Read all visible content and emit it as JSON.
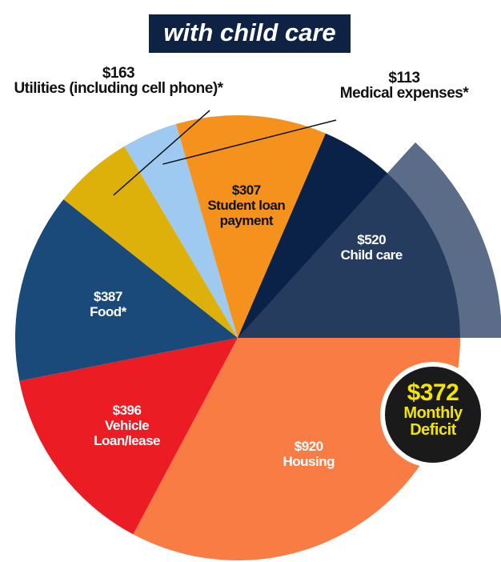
{
  "chart_data": {
    "type": "pie",
    "title": "with child care",
    "categories": [
      "Housing",
      "Vehicle Loan/lease",
      "Food*",
      "Utilities (including cell phone)*",
      "Medical expenses*",
      "Student loan payment",
      "Child care"
    ],
    "values": [
      920,
      396,
      387,
      163,
      113,
      307,
      520
    ],
    "value_labels": [
      "$920",
      "$396",
      "$387",
      "$163",
      "$113",
      "$307",
      "$520"
    ],
    "colors": [
      "#f97c45",
      "#ec1c24",
      "#1a4a7a",
      "#ddb00a",
      "#9ecaf2",
      "#f5921e",
      "#0a2247"
    ],
    "deficit": {
      "value": 372,
      "value_label": "$372",
      "label": "Monthly Deficit",
      "color": "#3d5272"
    }
  }
}
